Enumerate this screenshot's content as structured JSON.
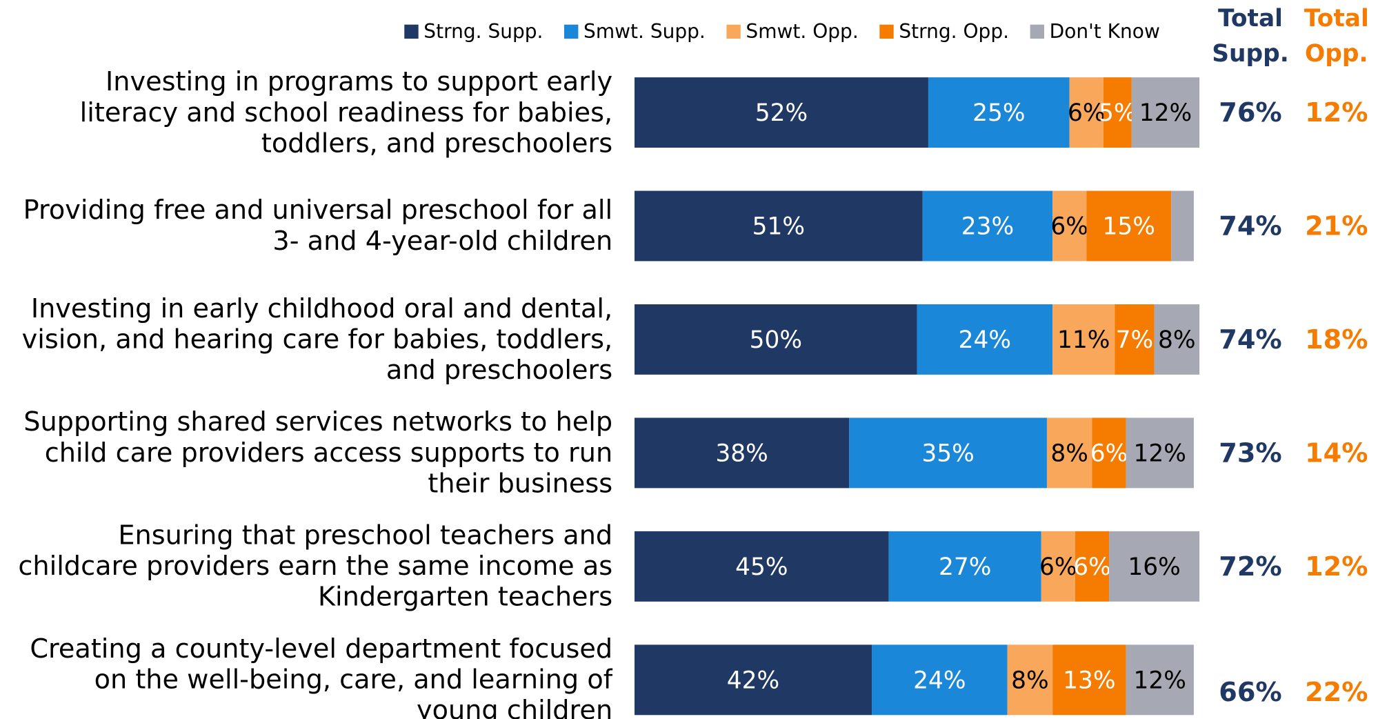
{
  "chart_data": {
    "type": "bar",
    "orientation": "horizontal",
    "stacked": true,
    "categories": [
      "Investing in programs to support early literacy and school readiness for babies, toddlers, and preschoolers",
      "Providing free and universal preschool for all 3- and 4-year-old children",
      "Investing in early childhood oral and dental, vision, and hearing care for babies, toddlers, and preschoolers",
      "Supporting shared services networks to help child care providers access supports to run their business",
      "Ensuring that preschool teachers and childcare providers earn the same income as Kindergarten teachers",
      "Creating a county-level department focused on the well-being, care, and learning of young children"
    ],
    "xlim": [
      0,
      100
    ],
    "legend": "top",
    "series": [
      {
        "name": "Strng. Supp.",
        "color": "#1f3864",
        "label_color": "#ffffff",
        "values": [
          52,
          51,
          50,
          38,
          45,
          42
        ],
        "value_labels": [
          "52%",
          "51%",
          "50%",
          "38%",
          "45%",
          "42%"
        ]
      },
      {
        "name": "Smwt. Supp.",
        "color": "#1b87d9",
        "label_color": "#ffffff",
        "values": [
          25,
          23,
          24,
          35,
          27,
          24
        ],
        "value_labels": [
          "25%",
          "23%",
          "24%",
          "35%",
          "27%",
          "24%"
        ]
      },
      {
        "name": "Smwt. Opp.",
        "color": "#f9a75a",
        "label_color": "#000000",
        "values": [
          6,
          6,
          11,
          8,
          6,
          8
        ],
        "value_labels": [
          "6%",
          "6%",
          "11%",
          "8%",
          "6%",
          "8%"
        ]
      },
      {
        "name": "Strng. Opp.",
        "color": "#f57c00",
        "label_color": "#ffffff",
        "values": [
          5,
          15,
          7,
          6,
          6,
          13
        ],
        "value_labels": [
          "5%",
          "15%",
          "7%",
          "6%",
          "6%",
          "13%"
        ]
      },
      {
        "name": "Don't Know",
        "color": "#a6a8b4",
        "label_color": "#000000",
        "values": [
          12,
          4,
          8,
          12,
          16,
          12
        ],
        "value_labels": [
          "12%",
          null,
          "8%",
          "12%",
          "16%",
          "12%"
        ]
      }
    ],
    "totals": [
      {
        "name": "Total Supp.",
        "color": "#1f3864",
        "values": [
          76,
          74,
          74,
          73,
          72,
          66
        ],
        "value_labels": [
          "76%",
          "74%",
          "74%",
          "73%",
          "72%",
          "66%"
        ]
      },
      {
        "name": "Total Opp.",
        "color": "#f57c00",
        "values": [
          12,
          21,
          18,
          14,
          12,
          22
        ],
        "value_labels": [
          "12%",
          "21%",
          "18%",
          "14%",
          "12%",
          "22%"
        ]
      }
    ]
  }
}
